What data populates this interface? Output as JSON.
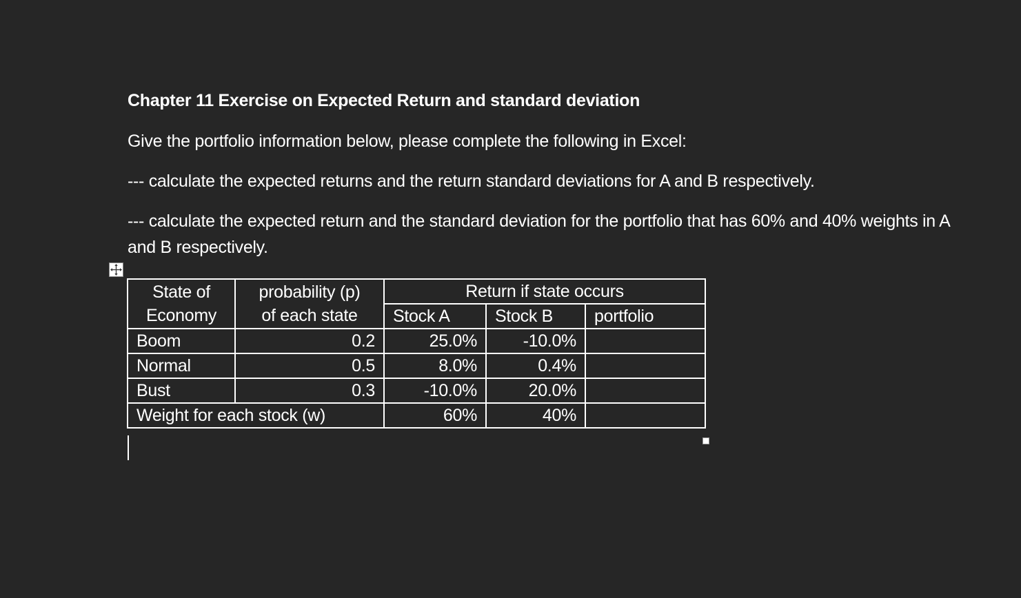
{
  "document": {
    "title": "Chapter 11 Exercise on Expected Return and standard deviation",
    "paragraphs": [
      "Give the portfolio information below, please complete the following in Excel:",
      "--- calculate the expected returns and the return standard deviations for A and B respectively.",
      "--- calculate the expected return and the standard deviation for the portfolio that has 60% and 40% weights in A and B respectively."
    ]
  },
  "table": {
    "header": {
      "state_line1": "State of",
      "state_line2": "Economy",
      "prob_line1": "probability (p)",
      "prob_line2": "of each state",
      "return_group": "Return if state occurs",
      "stock_a": "Stock A",
      "stock_b": "Stock B",
      "portfolio": "portfolio"
    },
    "rows": [
      {
        "state": "Boom",
        "probability": "0.2",
        "stock_a": "25.0%",
        "stock_b": "-10.0%",
        "portfolio": ""
      },
      {
        "state": "Normal",
        "probability": "0.5",
        "stock_a": "8.0%",
        "stock_b": "0.4%",
        "portfolio": ""
      },
      {
        "state": "Bust",
        "probability": "0.3",
        "stock_a": "-10.0%",
        "stock_b": "20.0%",
        "portfolio": ""
      }
    ],
    "weights": {
      "label": "Weight for each stock (w)",
      "stock_a": "60%",
      "stock_b": "40%",
      "portfolio": ""
    }
  },
  "icons": {
    "move_handle": "table-move-icon",
    "resize_handle": "table-resize-icon"
  }
}
